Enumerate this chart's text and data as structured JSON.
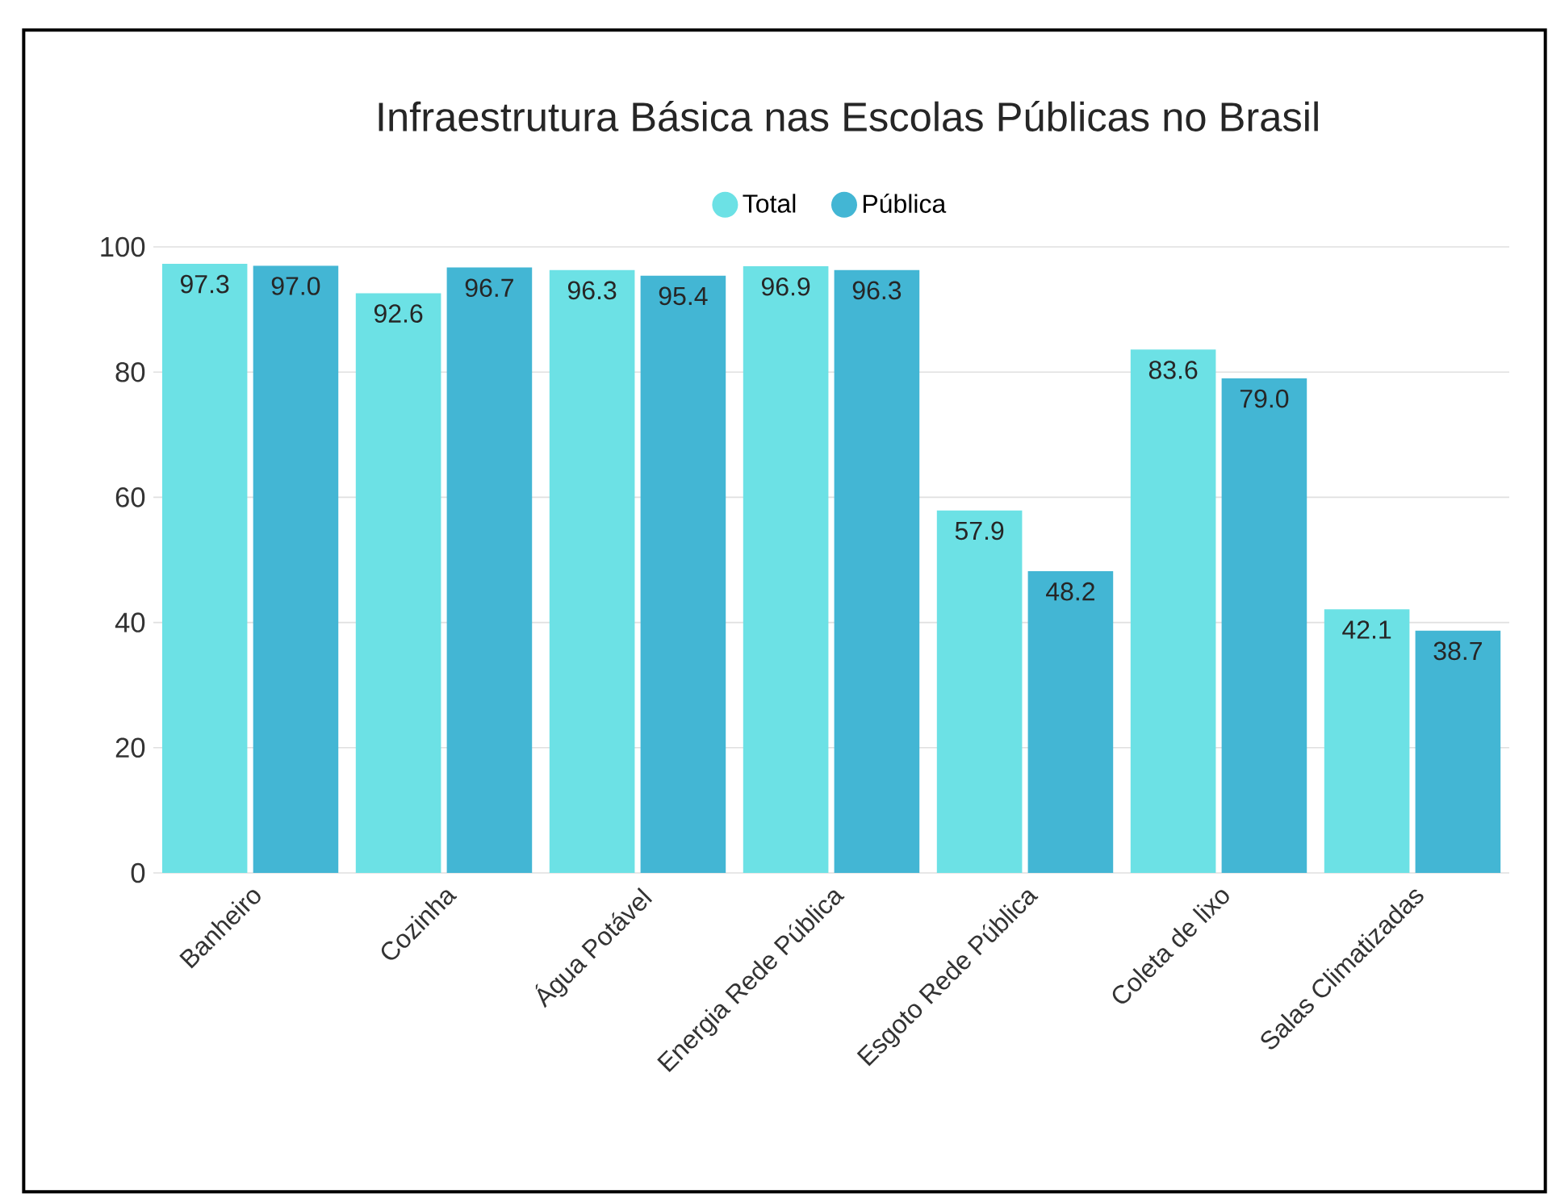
{
  "chart_data": {
    "type": "bar",
    "title": "Infraestrutura Básica nas Escolas Públicas no Brasil",
    "categories": [
      "Banheiro",
      "Cozinha",
      "Água Potável",
      "Energia Rede Pública",
      "Esgoto Rede Pública",
      "Coleta de lixo",
      "Salas Climatizadas"
    ],
    "series": [
      {
        "name": "Total",
        "color": "#6ce1e5",
        "values": [
          97.3,
          92.6,
          96.3,
          96.9,
          57.9,
          83.6,
          42.1
        ],
        "value_labels": [
          "97.3",
          "92.6",
          "96.3",
          "96.9",
          "57.9",
          "83.6",
          "42.1"
        ]
      },
      {
        "name": "Pública",
        "color": "#43b6d4",
        "values": [
          97.0,
          96.7,
          95.4,
          96.3,
          48.2,
          79.0,
          38.7
        ],
        "value_labels": [
          "97.0",
          "96.7",
          "95.4",
          "96.3",
          "48.2",
          "79.0",
          "38.7"
        ]
      }
    ],
    "ylim": [
      0,
      100
    ],
    "yticks": [
      0,
      20,
      40,
      60,
      80,
      100
    ],
    "grid": "y",
    "legend": "top"
  }
}
